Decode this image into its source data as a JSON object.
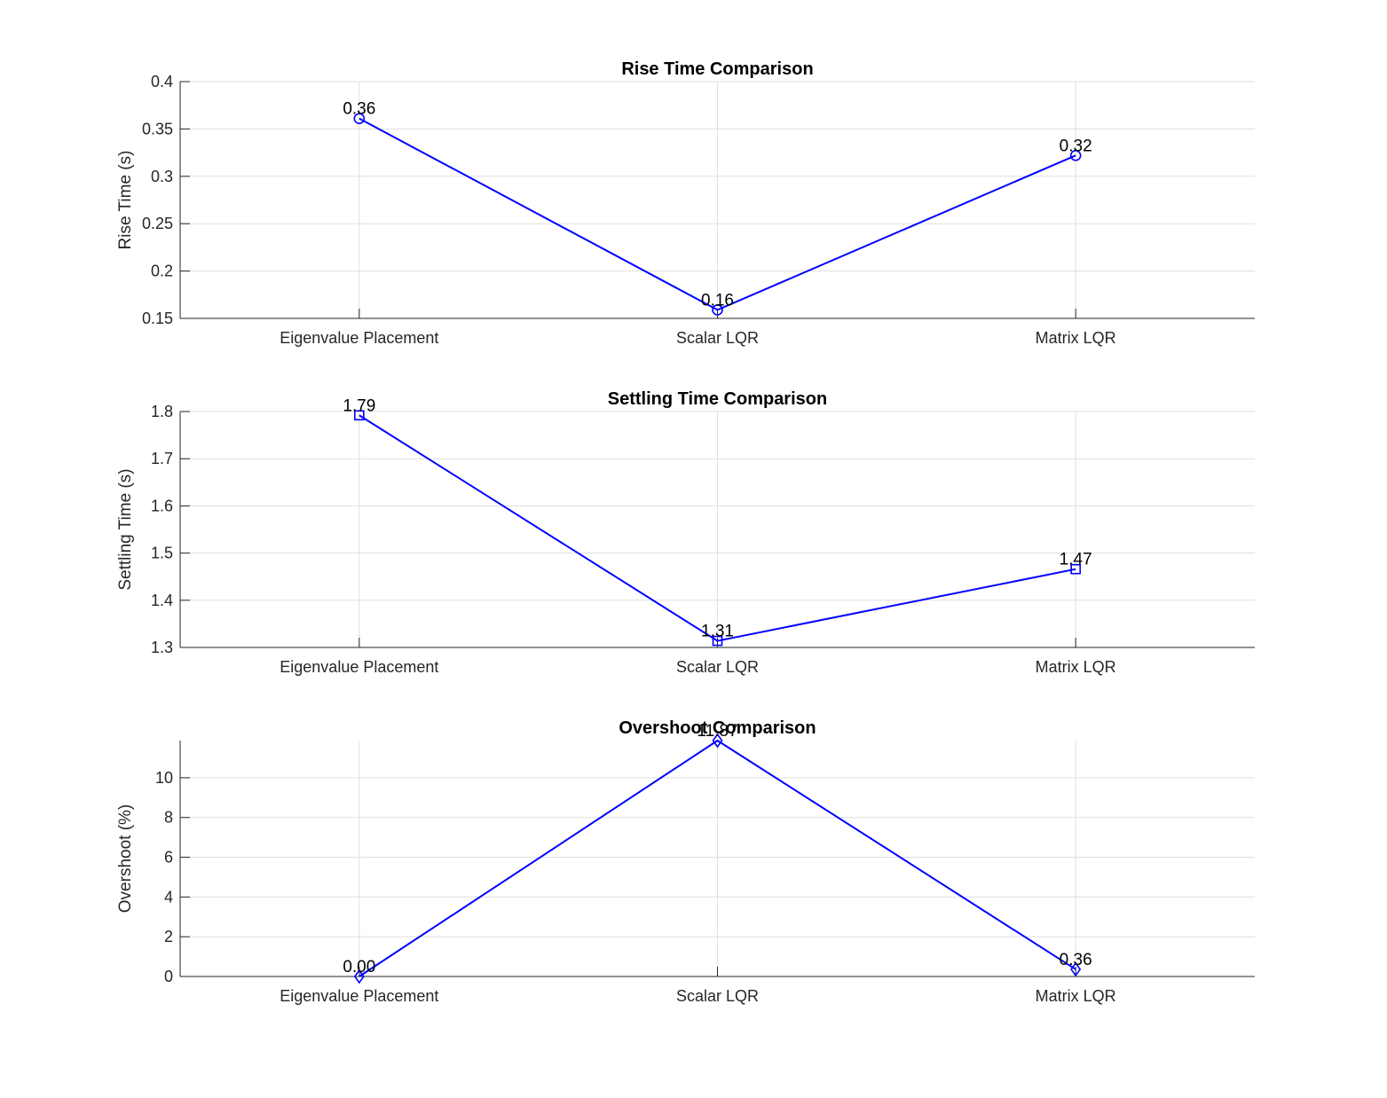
{
  "colors": {
    "series": "#0000ff",
    "text": "#262626",
    "grid": "#dfdfdf"
  },
  "chart_data": [
    {
      "type": "line",
      "title": "Rise Time Comparison",
      "xlabel": "",
      "ylabel": "Rise Time (s)",
      "categories": [
        "Eigenvalue Placement",
        "Scalar LQR",
        "Matrix LQR"
      ],
      "values": [
        0.361,
        0.159,
        0.322
      ],
      "data_labels": [
        "0.36",
        "0.16",
        "0.32"
      ],
      "marker": "circle",
      "ylim": [
        0.15,
        0.4
      ],
      "yticks": [
        0.15,
        0.2,
        0.25,
        0.3,
        0.35,
        0.4
      ],
      "ytick_labels": [
        "0.15",
        "0.2",
        "0.25",
        "0.3",
        "0.35",
        "0.4"
      ],
      "grid": true
    },
    {
      "type": "line",
      "title": "Settling Time Comparison",
      "xlabel": "",
      "ylabel": "Settling Time (s)",
      "categories": [
        "Eigenvalue Placement",
        "Scalar LQR",
        "Matrix LQR"
      ],
      "values": [
        1.792,
        1.314,
        1.466
      ],
      "data_labels": [
        "1.79",
        "1.31",
        "1.47"
      ],
      "marker": "square",
      "ylim": [
        1.3,
        1.8
      ],
      "yticks": [
        1.3,
        1.4,
        1.5,
        1.6,
        1.7,
        1.8
      ],
      "ytick_labels": [
        "1.3",
        "1.4",
        "1.5",
        "1.6",
        "1.7",
        "1.8"
      ],
      "grid": true
    },
    {
      "type": "line",
      "title": "Overshoot Comparison",
      "xlabel": "",
      "ylabel": "Overshoot (%)",
      "categories": [
        "Eigenvalue Placement",
        "Scalar LQR",
        "Matrix LQR"
      ],
      "values": [
        0.0,
        11.87,
        0.36
      ],
      "data_labels": [
        "0.00",
        "11.87",
        "0.36"
      ],
      "marker": "diamond",
      "ylim": [
        0,
        11.87
      ],
      "yticks": [
        0,
        2,
        4,
        6,
        8,
        10
      ],
      "ytick_labels": [
        "0",
        "2",
        "4",
        "6",
        "8",
        "10"
      ],
      "grid": true
    }
  ]
}
